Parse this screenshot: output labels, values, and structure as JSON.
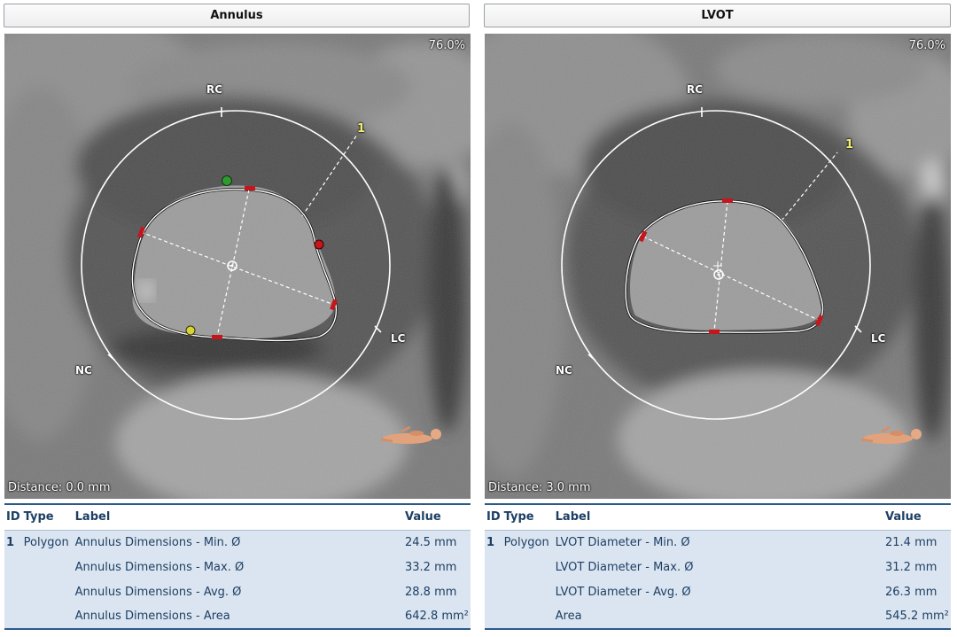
{
  "panels": [
    {
      "title": "Annulus",
      "zoom": "76.0%",
      "distance": "Distance: 0.0 mm",
      "cusps": {
        "rc": "RC",
        "lc": "LC",
        "nc": "NC"
      },
      "marker": "1",
      "table": {
        "headers": {
          "id": "ID",
          "type": "Type",
          "label": "Label",
          "value": "Value"
        },
        "rows": [
          {
            "id": "1",
            "type": "Polygon",
            "label": "Annulus Dimensions - Min. Ø",
            "value": "24.5 mm"
          },
          {
            "id": "",
            "type": "",
            "label": "Annulus Dimensions - Max. Ø",
            "value": "33.2 mm"
          },
          {
            "id": "",
            "type": "",
            "label": "Annulus Dimensions - Avg. Ø",
            "value": "28.8 mm"
          },
          {
            "id": "",
            "type": "",
            "label": "Annulus Dimensions - Area",
            "value": "642.8 mm²"
          }
        ]
      }
    },
    {
      "title": "LVOT",
      "zoom": "76.0%",
      "distance": "Distance: 3.0 mm",
      "cusps": {
        "rc": "RC",
        "lc": "LC",
        "nc": "NC"
      },
      "marker": "1",
      "table": {
        "headers": {
          "id": "ID",
          "type": "Type",
          "label": "Label",
          "value": "Value"
        },
        "rows": [
          {
            "id": "1",
            "type": "Polygon",
            "label": "LVOT Diameter - Min. Ø",
            "value": "21.4 mm"
          },
          {
            "id": "",
            "type": "",
            "label": "LVOT Diameter - Max. Ø",
            "value": "31.2 mm"
          },
          {
            "id": "",
            "type": "",
            "label": "LVOT Diameter - Avg. Ø",
            "value": "26.3 mm"
          },
          {
            "id": "",
            "type": "",
            "label": "Area",
            "value": "545.2 mm²"
          }
        ]
      }
    }
  ],
  "colors": {
    "accent": "#2c5a8a",
    "row_fill": "#dbe5f1",
    "handle_red": "#c4161c",
    "handle_green": "#2f9a2f",
    "handle_yellow": "#d8d23a"
  }
}
